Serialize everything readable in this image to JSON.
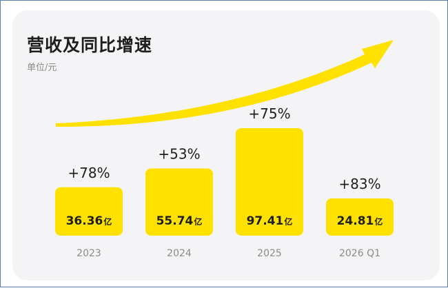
{
  "title": "营收及同比增速",
  "unit_label": "单位/元",
  "colors": {
    "bar": "#ffe100",
    "arrow": "#ffe100",
    "card_background": "#f4f4f6",
    "text_dark": "#1e1e1e",
    "text_muted": "#8a8a8a"
  },
  "chart_data": {
    "type": "bar",
    "title": "营收及同比增速",
    "ylabel": "单位/元",
    "categories": [
      "2023",
      "2024",
      "2025",
      "2026 Q1"
    ],
    "values": [
      36.36,
      55.74,
      97.41,
      24.81
    ],
    "value_labels": [
      "36.36",
      "55.74",
      "97.41",
      "24.81"
    ],
    "value_unit": "亿",
    "growth_labels": [
      "+78%",
      "+53%",
      "+75%",
      "+83%"
    ],
    "growth_percent": [
      78,
      53,
      75,
      83
    ],
    "trend_arrow": true,
    "grid": false
  }
}
